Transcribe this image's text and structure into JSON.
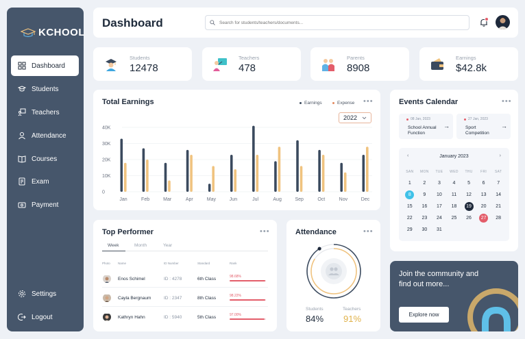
{
  "brand": {
    "logo_text": "KCHOOL"
  },
  "sidebar": {
    "items": [
      {
        "label": "Dashboard",
        "icon": "dashboard-icon",
        "active": true
      },
      {
        "label": "Students",
        "icon": "student-icon"
      },
      {
        "label": "Teachers",
        "icon": "teacher-icon"
      },
      {
        "label": "Attendance",
        "icon": "attendance-icon"
      },
      {
        "label": "Courses",
        "icon": "book-icon"
      },
      {
        "label": "Exam",
        "icon": "exam-icon"
      },
      {
        "label": "Payment",
        "icon": "payment-icon"
      }
    ],
    "bottom": [
      {
        "label": "Settings",
        "icon": "gear-icon"
      },
      {
        "label": "Logout",
        "icon": "logout-icon"
      }
    ]
  },
  "header": {
    "title": "Dashboard",
    "search_placeholder": "Search for students/teachers/documents..."
  },
  "stats": [
    {
      "label": "Students",
      "value": "12478",
      "icon": "student-graduate-icon"
    },
    {
      "label": "Teachers",
      "value": "478",
      "icon": "teacher-board-icon"
    },
    {
      "label": "Parents",
      "value": "8908",
      "icon": "parents-icon"
    },
    {
      "label": "Earnings",
      "value": "$42.8k",
      "icon": "wallet-icon"
    }
  ],
  "earnings": {
    "title": "Total Earnings",
    "legend_earnings": "Earnings",
    "legend_expense": "Expense",
    "year": "2022",
    "colors": {
      "earnings": "#3b4a5e",
      "expense": "#f0c37f"
    }
  },
  "chart_data": {
    "type": "bar",
    "title": "Total Earnings",
    "categories": [
      "Jan",
      "Feb",
      "Mar",
      "Apr",
      "May",
      "Jun",
      "Jul",
      "Aug",
      "Sep",
      "Oct",
      "Nov",
      "Dec"
    ],
    "series": [
      {
        "name": "Earnings",
        "values": [
          33,
          27,
          18,
          26,
          5,
          23,
          41,
          19,
          32,
          26,
          18,
          23
        ]
      },
      {
        "name": "Expense",
        "values": [
          18,
          20,
          7,
          23,
          16,
          14,
          23,
          28,
          16,
          23,
          12,
          28
        ]
      }
    ],
    "y_ticks": [
      "0",
      "10K",
      "20K",
      "30K",
      "40K"
    ],
    "ylim": [
      0,
      40
    ],
    "legend": "top-right",
    "grid": true
  },
  "events": {
    "title": "Events Calendar",
    "items": [
      {
        "date": "08 Jan, 2023",
        "name": "School Annual Function"
      },
      {
        "date": "27 Jan, 2023",
        "name": "Sport Competition"
      }
    ],
    "calendar": {
      "month": "January 2023",
      "weekdays": [
        "SAN",
        "MON",
        "TUE",
        "WED",
        "THU",
        "FRI",
        "SAT"
      ],
      "start_offset": 0,
      "days": 31,
      "highlights": [
        {
          "day": 8,
          "color": "#3fc1e8"
        },
        {
          "day": 19,
          "color": "#1e293b"
        },
        {
          "day": 27,
          "color": "#e35d6a"
        }
      ]
    }
  },
  "performer": {
    "title": "Top Performer",
    "tabs": [
      "Week",
      "Month",
      "Year"
    ],
    "headers": {
      "photo": "Photo",
      "name": "Name",
      "id": "ID Number",
      "standard": "Standard",
      "rank": "Rank"
    },
    "rows": [
      {
        "name": "Enos Schimel",
        "id": "ID : 4278",
        "standard": "6th Class",
        "rank": "98.68%",
        "percent": 98.68
      },
      {
        "name": "Cayla Bergnaum",
        "id": "ID : 2347",
        "standard": "8th Class",
        "rank": "98.22%",
        "percent": 98.22
      },
      {
        "name": "Kathryn Hahn",
        "id": "ID : 5940",
        "standard": "5th Class",
        "rank": "97.00%",
        "percent": 97.0
      }
    ]
  },
  "attendance": {
    "title": "Attendance",
    "students_label": "Students",
    "students_value": "84%",
    "students_percent": 84,
    "teachers_label": "Teachers",
    "teachers_value": "91%",
    "teachers_percent": 91
  },
  "community": {
    "text": "Join the community and find out more...",
    "button": "Explore now"
  }
}
